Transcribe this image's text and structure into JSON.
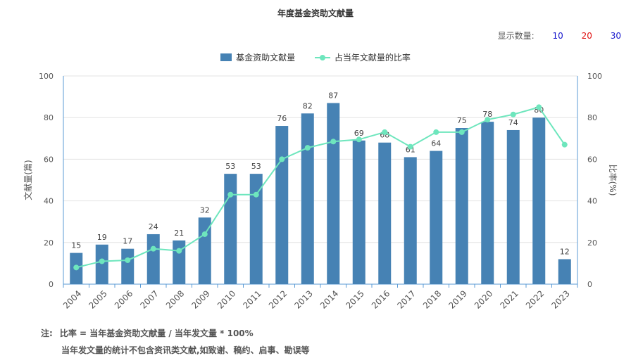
{
  "title": "年度基金资助文献量",
  "display_count": {
    "label": "显示数量:",
    "options": [
      {
        "label": "10",
        "color": "#1515cc"
      },
      {
        "label": "20",
        "color": "#e01010"
      },
      {
        "label": "30",
        "color": "#1515cc"
      }
    ]
  },
  "notes": {
    "prefix": "注:",
    "line1": "比率 = 当年基金资助文献量 / 当年发文量 * 100%",
    "line2": "当年发文量的统计不包含资讯类文献,如致谢、稿约、启事、勘误等"
  },
  "colors": {
    "bar": "#4682b4",
    "line": "#6ee6bd",
    "axis": "#5b9bd5"
  },
  "chart_data": {
    "type": "bar",
    "categories": [
      "2004",
      "2005",
      "2006",
      "2007",
      "2008",
      "2009",
      "2010",
      "2011",
      "2012",
      "2013",
      "2014",
      "2015",
      "2016",
      "2017",
      "2018",
      "2019",
      "2020",
      "2021",
      "2022",
      "2023"
    ],
    "series": [
      {
        "name": "基金资助文献量",
        "type": "bar",
        "axis": "left",
        "values": [
          15,
          19,
          17,
          24,
          21,
          32,
          53,
          53,
          76,
          82,
          87,
          69,
          68,
          61,
          64,
          75,
          78,
          74,
          80,
          12
        ]
      },
      {
        "name": "占当年文献量的比率",
        "type": "line",
        "axis": "right",
        "values": [
          8,
          11,
          11.5,
          17,
          16,
          24,
          43,
          43,
          60,
          65.5,
          68.5,
          69.5,
          73,
          66,
          73,
          73,
          79,
          81.5,
          85,
          67
        ]
      }
    ],
    "ylabel": "文献量(篇)",
    "y2label": "比率(%)",
    "ylim": [
      0,
      100
    ],
    "y2lim": [
      0,
      100
    ],
    "yticks": [
      "0",
      "20",
      "40",
      "60",
      "80",
      "100"
    ],
    "y2ticks": [
      "0",
      "20",
      "40",
      "60",
      "80",
      "100"
    ],
    "grid": true,
    "legend_position": "top-center",
    "data_labels": true
  }
}
